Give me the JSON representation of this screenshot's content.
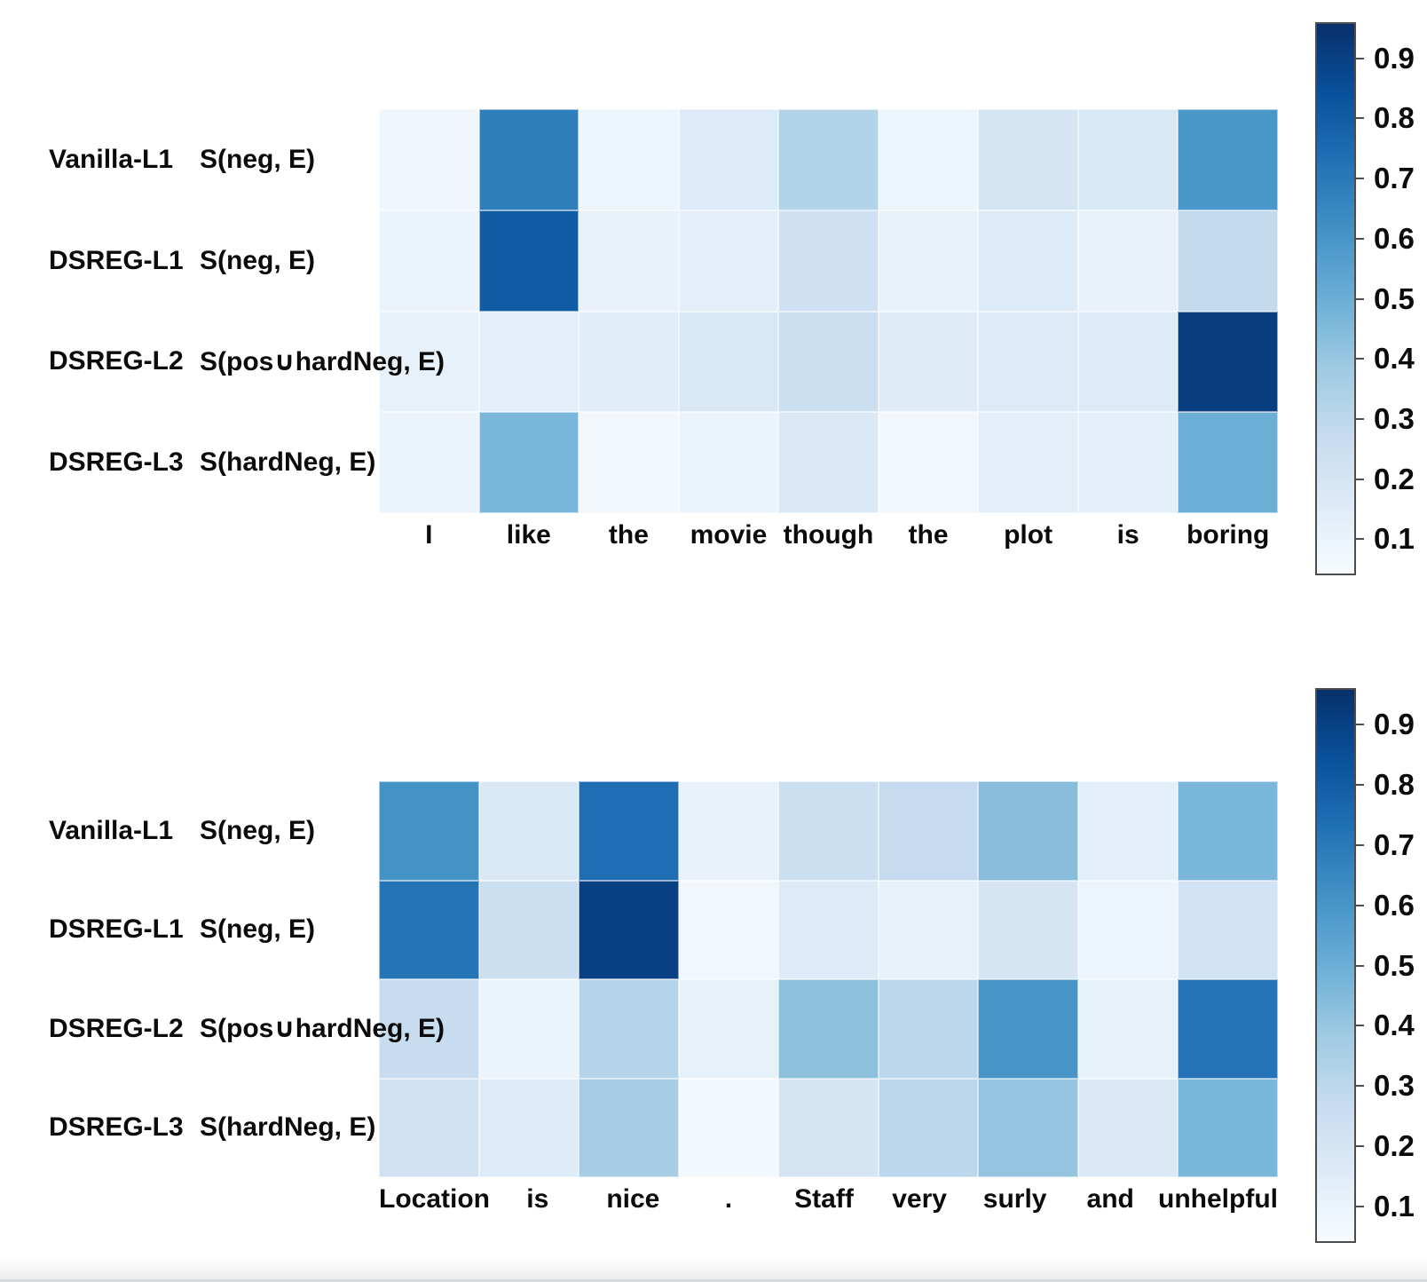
{
  "figure": {
    "colormap": "Blues",
    "cmap_low_color": "#f7fbff",
    "cmap_high_color": "#08306b",
    "text_color": "#0b0b0b"
  },
  "chart_data": [
    {
      "type": "heatmap",
      "sentence": "I like the movie though the plot is boring",
      "categories": [
        "I",
        "like",
        "the",
        "movie",
        "though",
        "the",
        "plot",
        "is",
        "boring"
      ],
      "rows": [
        {
          "model": "Vanilla-L1",
          "score_fn": "S(neg, E)"
        },
        {
          "model": "DSREG-L1",
          "score_fn": "S(neg, E)"
        },
        {
          "model": "DSREG-L2",
          "score_fn": "S(pos∪hardNeg, E)"
        },
        {
          "model": "DSREG-L3",
          "score_fn": "S(hardNeg, E)"
        }
      ],
      "series": [
        {
          "name": "Vanilla-L1 S(neg, E)",
          "values": [
            0.04,
            0.7,
            0.05,
            0.13,
            0.31,
            0.05,
            0.17,
            0.15,
            0.6
          ]
        },
        {
          "name": "DSREG-L1 S(neg, E)",
          "values": [
            0.06,
            0.83,
            0.07,
            0.1,
            0.21,
            0.08,
            0.13,
            0.07,
            0.26
          ]
        },
        {
          "name": "DSREG-L2 S(pos∪hardNeg, E)",
          "values": [
            0.08,
            0.1,
            0.11,
            0.15,
            0.22,
            0.12,
            0.13,
            0.13,
            0.95
          ]
        },
        {
          "name": "DSREG-L3 S(hardNeg, E)",
          "values": [
            0.06,
            0.46,
            0.03,
            0.06,
            0.14,
            0.03,
            0.1,
            0.09,
            0.5
          ]
        }
      ],
      "colorbar": {
        "ticks": [
          "0.9",
          "0.8",
          "0.7",
          "0.6",
          "0.5",
          "0.4",
          "0.3",
          "0.2",
          "0.1"
        ],
        "vmin": 0.04,
        "vmax": 0.96
      },
      "grid": false,
      "legend_position": "right-colorbar"
    },
    {
      "type": "heatmap",
      "sentence": "Location is nice . Staff very surly and unhelpful",
      "categories": [
        "Location",
        "is",
        "nice",
        ".",
        "Staff",
        "very",
        "surly",
        "and",
        "unhelpful"
      ],
      "rows": [
        {
          "model": "Vanilla-L1",
          "score_fn": "S(neg, E)"
        },
        {
          "model": "DSREG-L1",
          "score_fn": "S(neg, E)"
        },
        {
          "model": "DSREG-L2",
          "score_fn": "S(pos∪hardNeg, E)"
        },
        {
          "model": "DSREG-L3",
          "score_fn": "S(hardNeg, E)"
        }
      ],
      "series": [
        {
          "name": "Vanilla-L1 S(neg, E)",
          "values": [
            0.62,
            0.15,
            0.76,
            0.07,
            0.22,
            0.25,
            0.43,
            0.09,
            0.46
          ]
        },
        {
          "name": "DSREG-L1 S(neg, E)",
          "values": [
            0.74,
            0.22,
            0.94,
            0.03,
            0.13,
            0.08,
            0.17,
            0.05,
            0.19
          ]
        },
        {
          "name": "DSREG-L2 S(pos∪hardNeg, E)",
          "values": [
            0.24,
            0.06,
            0.3,
            0.08,
            0.42,
            0.28,
            0.61,
            0.08,
            0.74
          ]
        },
        {
          "name": "DSREG-L3 S(hardNeg, E)",
          "values": [
            0.2,
            0.13,
            0.35,
            0.02,
            0.17,
            0.28,
            0.4,
            0.14,
            0.46
          ]
        }
      ],
      "colorbar": {
        "ticks": [
          "0.9",
          "0.8",
          "0.7",
          "0.6",
          "0.5",
          "0.4",
          "0.3",
          "0.2",
          "0.1"
        ],
        "vmin": 0.04,
        "vmax": 0.96
      },
      "grid": false,
      "legend_position": "right-colorbar"
    }
  ]
}
